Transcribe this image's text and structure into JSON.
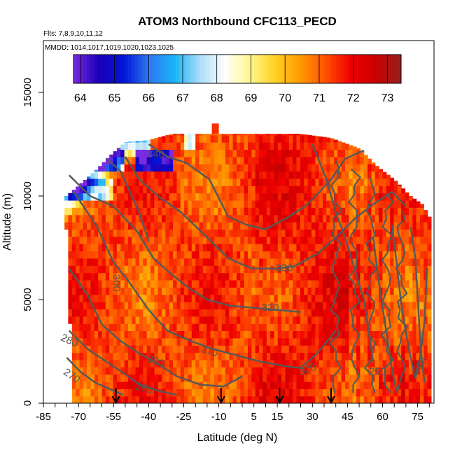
{
  "chart_data": {
    "type": "heatmap",
    "title": "ATOM3 Northbound CFC113_PECD",
    "subtitle_flights": "Flts: 7,8,9,10,11,12",
    "subtitle_dates": "MMDD: 1014,1017,1019,1020,1023,1025",
    "xlabel": "Latitude (deg N)",
    "ylabel": "Altitude (m)",
    "xlim": [
      -85,
      82
    ],
    "ylim": [
      0,
      17500
    ],
    "x_ticks": [
      -85,
      -70,
      -55,
      -40,
      -25,
      -10,
      5,
      15,
      30,
      45,
      60,
      75
    ],
    "y_ticks": [
      0,
      5000,
      10000,
      15000
    ],
    "colorbar": {
      "min": 63.8,
      "max": 73.4,
      "ticks": [
        64,
        65,
        66,
        67,
        68,
        69,
        70,
        71,
        72,
        73
      ],
      "colors": [
        "#7a2be0",
        "#1a00b8",
        "#0016d8",
        "#2f78f0",
        "#18b4f8",
        "#a8dcf8",
        "#ffffff",
        "#fff690",
        "#ffd020",
        "#ff9a00",
        "#ff5000",
        "#f00000",
        "#c80000",
        "#962020"
      ]
    },
    "arrow_latitudes": [
      -54,
      -9,
      16,
      38
    ],
    "contours": [
      {
        "label": "270",
        "label_lat": -73,
        "label_alt": 1300,
        "label_rot": 35
      },
      {
        "label": "280",
        "label_lat": -74,
        "label_alt": 3000,
        "label_rot": 25
      },
      {
        "label": "290",
        "label_lat": -42,
        "label_alt": 700,
        "label_rot": 15
      },
      {
        "label": "300",
        "label_lat": -37,
        "label_alt": 2000,
        "label_rot": 20
      },
      {
        "label": "300",
        "label_lat": 28,
        "label_alt": 1600,
        "label_rot": -20
      },
      {
        "label": "310",
        "label_lat": -14,
        "label_alt": 2500,
        "label_rot": 15
      },
      {
        "label": "320",
        "label_lat": 12,
        "label_alt": 4600,
        "label_rot": 0
      },
      {
        "label": "330",
        "label_lat": 18,
        "label_alt": 6500,
        "label_rot": 0
      },
      {
        "label": "340",
        "label_lat": -37,
        "label_alt": 12000,
        "label_rot": 0
      },
      {
        "label": "300",
        "label_lat": -54,
        "label_alt": 5800,
        "label_rot": 90
      },
      {
        "label": "290",
        "label_lat": 58,
        "label_alt": 1500,
        "label_rot": 0
      },
      {
        "label": "310",
        "label_lat": 76,
        "label_alt": 1800,
        "label_rot": -55
      }
    ]
  }
}
